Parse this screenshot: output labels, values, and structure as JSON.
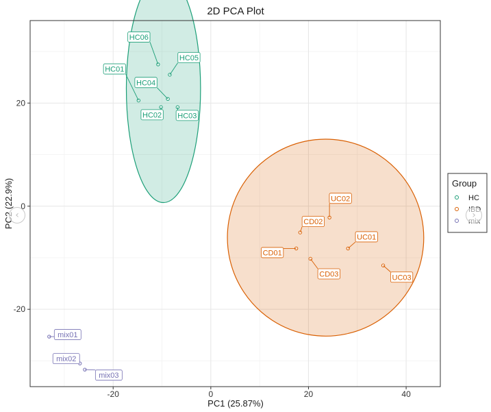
{
  "chart_data": {
    "type": "scatter",
    "title": "2D PCA Plot",
    "xlabel": "PC1 (25.87%)",
    "ylabel": "PC2 (22.9%)",
    "xlim": [
      -37,
      47
    ],
    "ylim": [
      -35,
      36
    ],
    "xticks": [
      -20,
      0,
      20,
      40
    ],
    "yticks": [
      -20,
      0,
      20
    ],
    "xtick_labels": [
      "-20",
      "0",
      "20",
      "40"
    ],
    "ytick_labels": [
      "-20",
      "0",
      "20"
    ],
    "grid": true,
    "legend": {
      "title": "Group",
      "placement": "right",
      "entries": [
        {
          "label": "HC",
          "color": "#1b9e77"
        },
        {
          "label": "IBD",
          "color": "#d95f02"
        },
        {
          "label": "mix",
          "color": "#7570b3"
        }
      ]
    },
    "series": [
      {
        "name": "HC",
        "color": "#1b9e77",
        "points": [
          {
            "label": "HC01",
            "x": -14.8,
            "y": 20.5
          },
          {
            "label": "HC02",
            "x": -10.2,
            "y": 19.2
          },
          {
            "label": "HC03",
            "x": -6.8,
            "y": 19.2
          },
          {
            "label": "HC04",
            "x": -8.8,
            "y": 20.8
          },
          {
            "label": "HC05",
            "x": -8.4,
            "y": 25.5
          },
          {
            "label": "HC06",
            "x": -10.8,
            "y": 27.5
          }
        ],
        "ellipse": {
          "cx": -9.7,
          "cy": 22.8,
          "rx": 7.6,
          "ry": 22.1,
          "rotation_deg": 0
        }
      },
      {
        "name": "IBD",
        "color": "#d95f02",
        "points": [
          {
            "label": "CD01",
            "x": 17.5,
            "y": -8.2
          },
          {
            "label": "CD02",
            "x": 18.3,
            "y": -5.1
          },
          {
            "label": "CD03",
            "x": 20.4,
            "y": -10.2
          },
          {
            "label": "UC01",
            "x": 28.1,
            "y": -8.2
          },
          {
            "label": "UC02",
            "x": 24.3,
            "y": -2.2
          },
          {
            "label": "UC03",
            "x": 35.3,
            "y": -11.5
          }
        ],
        "ellipse": {
          "cx": 23.5,
          "cy": -6.1,
          "rx": 20.1,
          "ry": 19.1,
          "rotation_deg": -12
        }
      },
      {
        "name": "mix",
        "color": "#7570b3",
        "points": [
          {
            "label": "mix01",
            "x": -33.1,
            "y": -25.3
          },
          {
            "label": "mix02",
            "x": -26.8,
            "y": -30.5
          },
          {
            "label": "mix03",
            "x": -25.8,
            "y": -31.7
          }
        ]
      }
    ]
  }
}
